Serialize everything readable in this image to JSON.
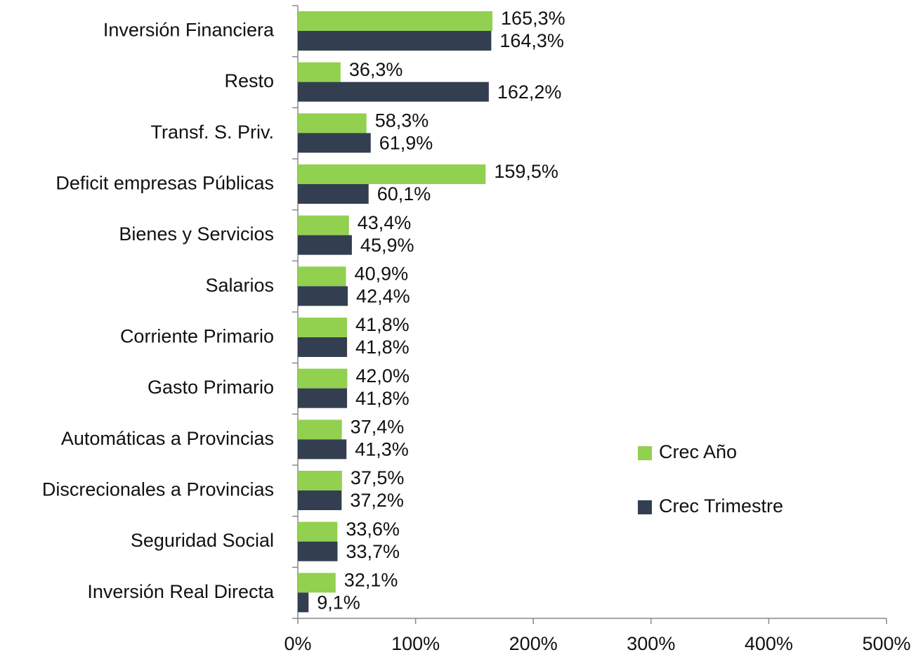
{
  "chart_data": {
    "type": "bar",
    "orientation": "horizontal",
    "categories": [
      "Inversión Financiera",
      "Resto",
      "Transf. S. Priv.",
      "Deficit empresas Públicas",
      "Bienes y Servicios",
      "Salarios",
      "Corriente Primario",
      "Gasto Primario",
      "Automáticas a Provincias",
      "Discrecionales a Provincias",
      "Seguridad Social",
      "Inversión Real Directa"
    ],
    "series": [
      {
        "name": "Crec Año",
        "color": "#92d050",
        "values": [
          165.3,
          36.3,
          58.3,
          159.5,
          43.4,
          40.9,
          41.8,
          42.0,
          37.4,
          37.5,
          33.6,
          32.1
        ],
        "value_labels": [
          "165,3%",
          "36,3%",
          "58,3%",
          "159,5%",
          "43,4%",
          "40,9%",
          "41,8%",
          "42,0%",
          "37,4%",
          "37,5%",
          "33,6%",
          "32,1%"
        ]
      },
      {
        "name": "Crec Trimestre",
        "color": "#333f50",
        "values": [
          164.3,
          162.2,
          61.9,
          60.1,
          45.9,
          42.4,
          41.8,
          41.8,
          41.3,
          37.2,
          33.7,
          9.1
        ],
        "value_labels": [
          "164,3%",
          "162,2%",
          "61,9%",
          "60,1%",
          "45,9%",
          "42,4%",
          "41,8%",
          "41,8%",
          "41,3%",
          "37,2%",
          "33,7%",
          "9,1%"
        ]
      }
    ],
    "xlim": [
      0,
      500
    ],
    "xticks": [
      {
        "value": 0,
        "label": "0%"
      },
      {
        "value": 100,
        "label": "100%"
      },
      {
        "value": 200,
        "label": "200%"
      },
      {
        "value": 300,
        "label": "300%"
      },
      {
        "value": 400,
        "label": "400%"
      },
      {
        "value": 500,
        "label": "500%"
      }
    ],
    "legend": "right"
  }
}
